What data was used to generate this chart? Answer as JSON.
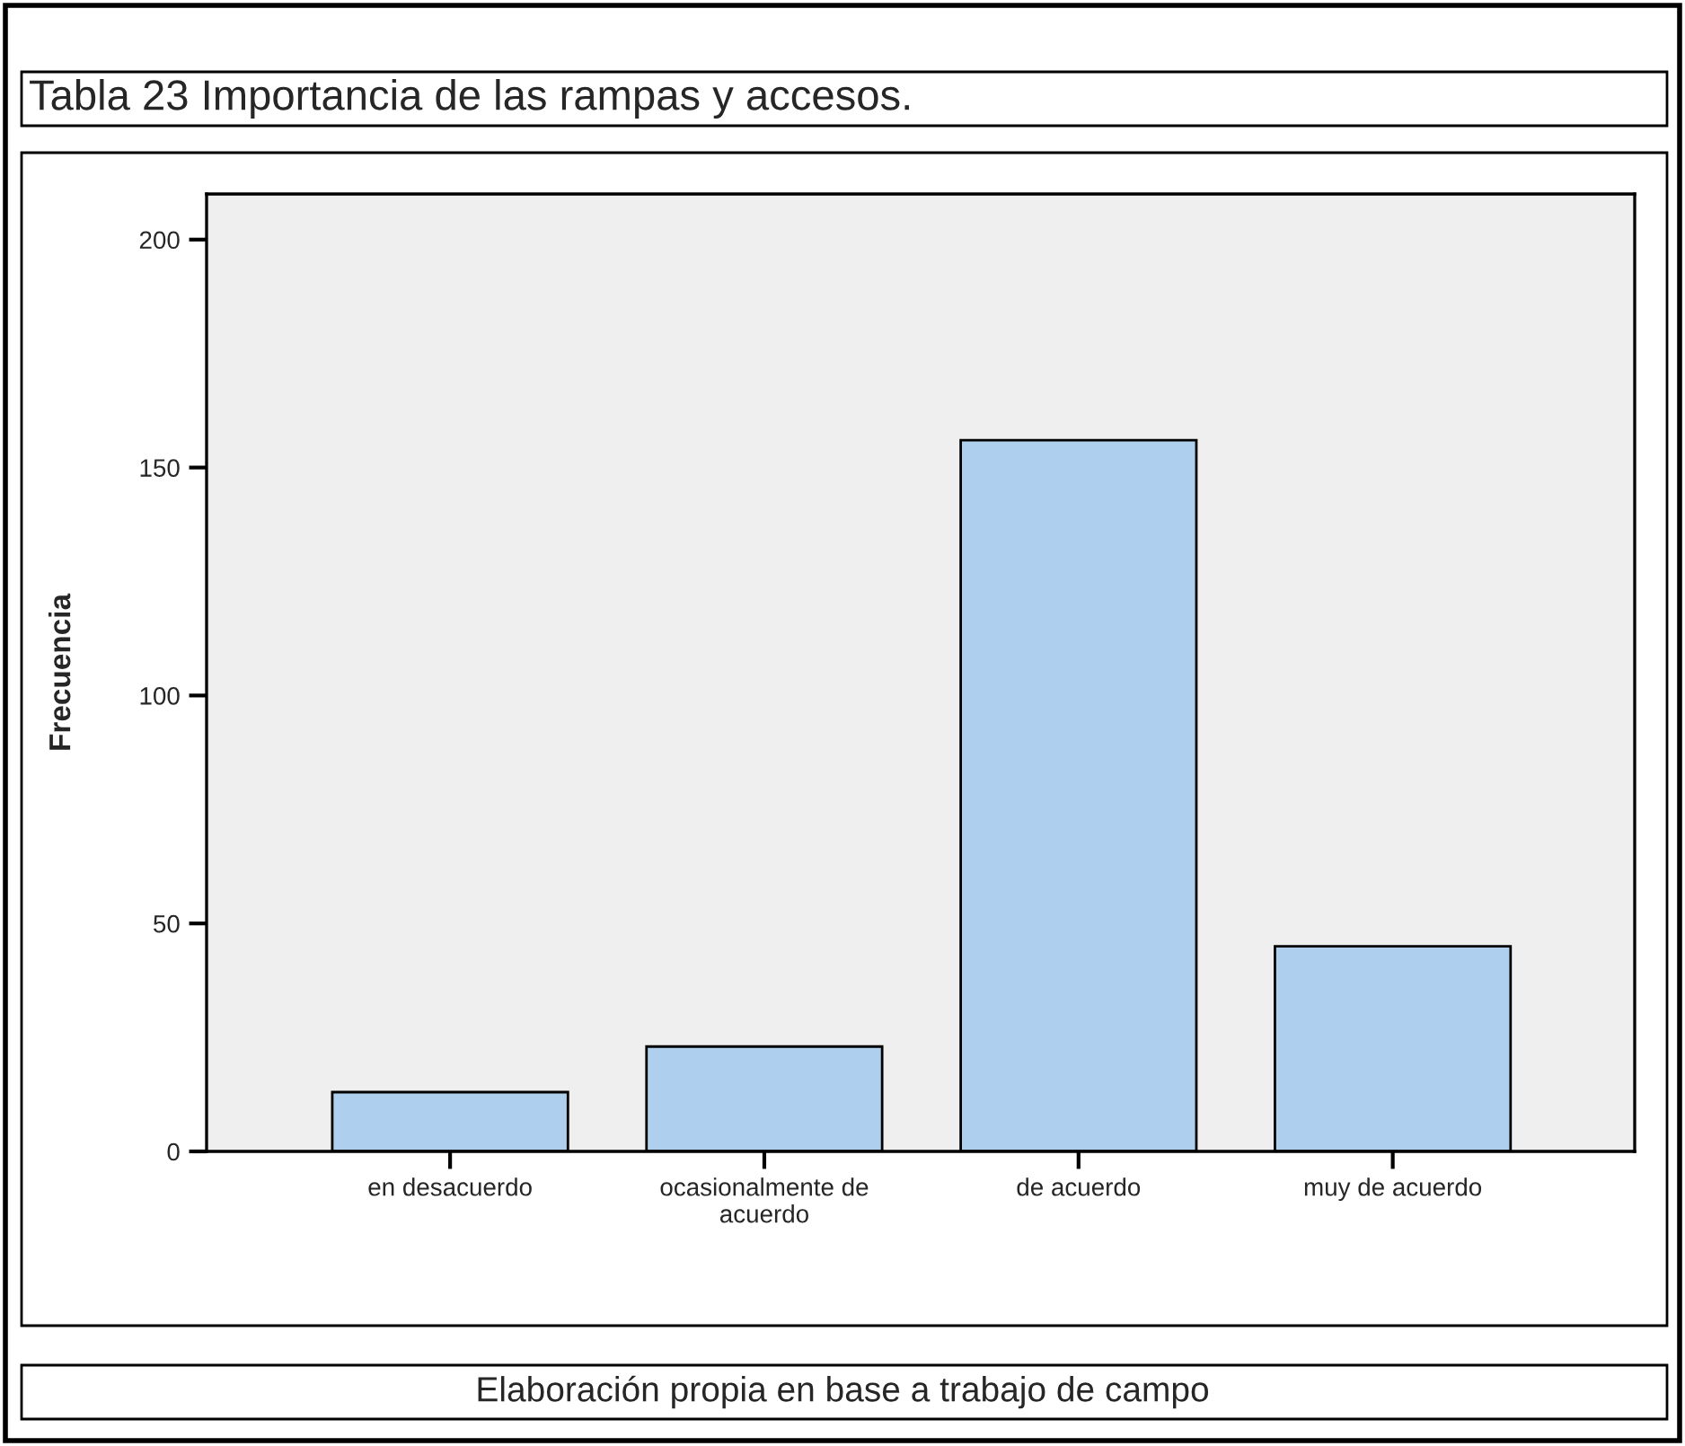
{
  "chart_data": {
    "type": "bar",
    "title": "Tabla 23 Importancia de las rampas y accesos.",
    "ylabel": "Frecuencia",
    "categories": [
      "en desacuerdo",
      "ocasionalmente de\nacuerdo",
      "de acuerdo",
      "muy de acuerdo"
    ],
    "values": [
      13,
      23,
      156,
      45
    ],
    "color": "#aed0ee",
    "ylim": [
      0,
      210
    ],
    "yticks": [
      0,
      50,
      100,
      150,
      200
    ],
    "grid": false,
    "annotations": [
      "Elaboración propia en base a trabajo de campo"
    ]
  }
}
